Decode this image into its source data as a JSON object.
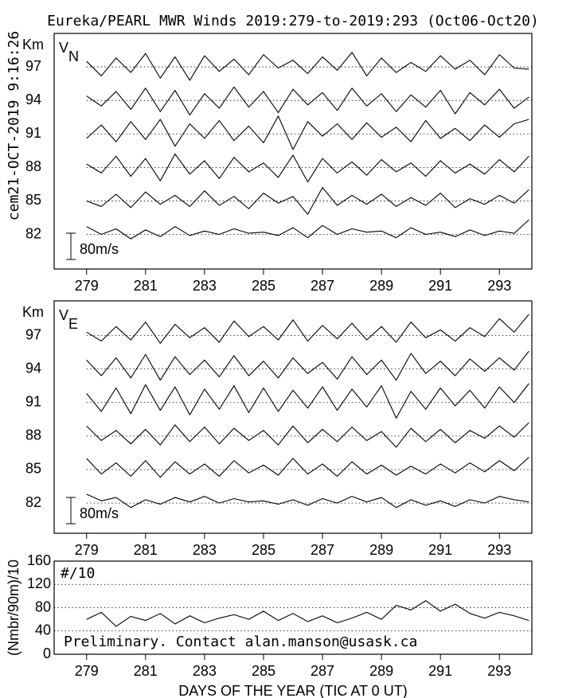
{
  "chart_data": [
    {
      "type": "line",
      "title": "Eureka/PEARL MWR Winds 2019:279-to-2019:293 (Oct06-Oct20)",
      "stamp": "cem21-OCT-2019  9:16:26",
      "ylabel": "Km",
      "panel_label": "V",
      "panel_label_sub": "N",
      "scale_label": "80m/s",
      "grid": true,
      "color": "#000000",
      "xlim": [
        277.9,
        294.1
      ],
      "xticks": [
        279,
        281,
        283,
        285,
        287,
        289,
        291,
        293
      ],
      "ylim": [
        78.9,
        100
      ],
      "yticks": [
        82,
        85,
        88,
        91,
        94,
        97
      ],
      "x": [
        279,
        279.5,
        280,
        280.5,
        281,
        281.5,
        282,
        282.5,
        283,
        283.5,
        284,
        284.5,
        285,
        285.5,
        286,
        286.5,
        287,
        287.5,
        288,
        288.5,
        289,
        289.5,
        290,
        290.5,
        291,
        291.5,
        292,
        292.5,
        293,
        293.5,
        294
      ],
      "series": [
        {
          "values": [
            97.5,
            96.2,
            97.8,
            96.5,
            98.2,
            96.0,
            97.9,
            95.8,
            98.0,
            96.6,
            97.7,
            96.3,
            98.1,
            96.9,
            97.6,
            96.4,
            97.9,
            96.7,
            98.3,
            96.2,
            97.8,
            96.5,
            97.4,
            96.6,
            98.0,
            96.8,
            97.6,
            96.3,
            98.1,
            96.9,
            96.8
          ]
        },
        {
          "values": [
            94.4,
            93.5,
            94.8,
            93.2,
            95.1,
            93.0,
            94.9,
            92.7,
            94.6,
            93.3,
            95.2,
            93.4,
            94.8,
            92.9,
            95.0,
            93.6,
            94.7,
            93.1,
            95.1,
            93.5,
            94.6,
            93.0,
            94.5,
            93.4,
            94.9,
            92.8,
            94.7,
            93.6,
            95.0,
            93.3,
            94.3
          ]
        },
        {
          "values": [
            90.6,
            91.8,
            90.3,
            92.1,
            90.5,
            92.3,
            89.9,
            91.9,
            90.6,
            92.2,
            90.4,
            91.7,
            90.2,
            92.6,
            89.6,
            92.1,
            90.8,
            91.9,
            90.5,
            92.0,
            90.7,
            91.6,
            90.3,
            92.2,
            90.6,
            91.5,
            90.4,
            91.8,
            90.7,
            91.9,
            92.3
          ]
        },
        {
          "values": [
            88.3,
            87.5,
            89.0,
            87.2,
            88.8,
            86.8,
            89.2,
            87.4,
            88.6,
            87.0,
            88.9,
            87.6,
            88.4,
            87.1,
            89.1,
            86.7,
            88.8,
            87.5,
            88.5,
            87.3,
            88.7,
            87.6,
            88.4,
            87.2,
            88.6,
            87.5,
            88.3,
            87.4,
            88.7,
            87.6,
            89.0
          ]
        },
        {
          "values": [
            85.0,
            84.5,
            85.6,
            84.4,
            85.8,
            84.7,
            85.5,
            84.5,
            85.9,
            84.6,
            85.4,
            84.3,
            85.7,
            84.8,
            85.4,
            83.8,
            86.2,
            84.6,
            85.5,
            84.7,
            85.6,
            84.5,
            85.3,
            84.6,
            85.7,
            84.4,
            85.2,
            84.7,
            85.5,
            84.8,
            86.0
          ]
        },
        {
          "values": [
            82.7,
            82.0,
            82.5,
            81.6,
            82.4,
            81.8,
            82.7,
            81.9,
            82.3,
            82.0,
            82.5,
            82.1,
            82.2,
            81.9,
            82.6,
            81.7,
            82.8,
            82.0,
            82.5,
            82.2,
            82.3,
            81.7,
            82.6,
            82.0,
            82.2,
            81.8,
            82.4,
            81.9,
            82.3,
            82.1,
            83.3
          ]
        }
      ]
    },
    {
      "type": "line",
      "ylabel": "Km",
      "panel_label": "V",
      "panel_label_sub": "E",
      "scale_label": "80m/s",
      "grid": true,
      "color": "#000000",
      "xlim": [
        277.9,
        294.1
      ],
      "xticks": [
        279,
        281,
        283,
        285,
        287,
        289,
        291,
        293
      ],
      "ylim": [
        79.3,
        100.1
      ],
      "yticks": [
        82,
        85,
        88,
        91,
        94,
        97
      ],
      "x": [
        279,
        279.5,
        280,
        280.5,
        281,
        281.5,
        282,
        282.5,
        283,
        283.5,
        284,
        284.5,
        285,
        285.5,
        286,
        286.5,
        287,
        287.5,
        288,
        288.5,
        289,
        289.5,
        290,
        290.5,
        291,
        291.5,
        292,
        292.5,
        293,
        293.5,
        294
      ],
      "series": [
        {
          "values": [
            97.3,
            96.5,
            97.8,
            96.6,
            98.2,
            96.3,
            98.0,
            96.8,
            97.7,
            96.4,
            98.3,
            96.9,
            97.8,
            96.6,
            98.4,
            96.5,
            97.9,
            96.7,
            98.1,
            96.6,
            97.8,
            96.4,
            98.2,
            96.8,
            97.5,
            96.5,
            97.7,
            96.9,
            98.5,
            97.3,
            98.9
          ]
        },
        {
          "values": [
            94.8,
            93.4,
            95.0,
            93.2,
            95.3,
            93.0,
            95.1,
            93.5,
            94.8,
            93.3,
            95.2,
            93.4,
            94.7,
            93.2,
            95.0,
            93.6,
            94.6,
            93.1,
            95.1,
            93.5,
            94.8,
            93.0,
            95.4,
            93.6,
            94.7,
            93.4,
            94.9,
            93.8,
            95.0,
            93.9,
            95.6
          ]
        },
        {
          "values": [
            91.8,
            90.2,
            92.3,
            90.0,
            92.6,
            90.3,
            92.4,
            89.9,
            92.2,
            90.4,
            92.5,
            90.1,
            92.3,
            90.2,
            92.1,
            90.5,
            92.4,
            90.3,
            92.2,
            90.6,
            92.5,
            89.6,
            92.0,
            90.4,
            92.3,
            90.7,
            92.1,
            90.5,
            92.4,
            91.0,
            92.7
          ]
        },
        {
          "values": [
            88.9,
            87.6,
            88.5,
            87.3,
            88.6,
            87.2,
            89.0,
            87.5,
            88.8,
            87.3,
            88.7,
            87.6,
            88.5,
            87.2,
            88.9,
            87.4,
            88.6,
            87.5,
            88.8,
            87.6,
            88.4,
            87.0,
            88.7,
            87.5,
            88.6,
            87.4,
            88.5,
            87.8,
            88.9,
            87.9,
            89.2
          ]
        },
        {
          "values": [
            86.0,
            84.6,
            85.6,
            84.4,
            85.8,
            84.3,
            85.7,
            84.6,
            85.5,
            84.4,
            85.8,
            84.7,
            85.4,
            84.5,
            86.0,
            84.6,
            85.5,
            84.4,
            85.7,
            84.6,
            85.4,
            84.5,
            85.3,
            84.6,
            85.5,
            84.7,
            85.6,
            84.8,
            85.8,
            84.9,
            86.1
          ]
        },
        {
          "values": [
            82.8,
            82.2,
            82.5,
            81.6,
            82.3,
            81.9,
            82.5,
            82.1,
            82.6,
            82.0,
            82.4,
            82.1,
            82.2,
            81.9,
            82.3,
            81.8,
            82.4,
            82.0,
            82.6,
            82.1,
            82.5,
            81.6,
            82.3,
            81.8,
            82.2,
            81.7,
            82.3,
            82.0,
            82.6,
            82.3,
            82.1
          ]
        }
      ]
    },
    {
      "type": "line",
      "ylabel": "(Nmbr/90m)/10",
      "annotation": "#/10",
      "note": "Preliminary. Contact alan.manson@usask.ca",
      "xlabel": "DAYS OF THE YEAR (TIC AT 0 UT)",
      "grid": true,
      "color": "#000000",
      "xlim": [
        277.9,
        294.1
      ],
      "xticks": [
        279,
        281,
        283,
        285,
        287,
        289,
        291,
        293
      ],
      "ylim": [
        0,
        160
      ],
      "yticks": [
        0,
        40,
        80,
        120,
        160
      ],
      "x": [
        279,
        279.5,
        280,
        280.5,
        281,
        281.5,
        282,
        282.5,
        283,
        283.5,
        284,
        284.5,
        285,
        285.5,
        286,
        286.5,
        287,
        287.5,
        288,
        288.5,
        289,
        289.5,
        290,
        290.5,
        291,
        291.5,
        292,
        292.5,
        293,
        293.5,
        294
      ],
      "series": [
        {
          "values": [
            60,
            72,
            48,
            65,
            58,
            70,
            52,
            66,
            54,
            62,
            68,
            60,
            74,
            58,
            70,
            56,
            66,
            54,
            62,
            72,
            60,
            84,
            76,
            92,
            74,
            86,
            70,
            62,
            72,
            66,
            58
          ]
        }
      ]
    }
  ]
}
